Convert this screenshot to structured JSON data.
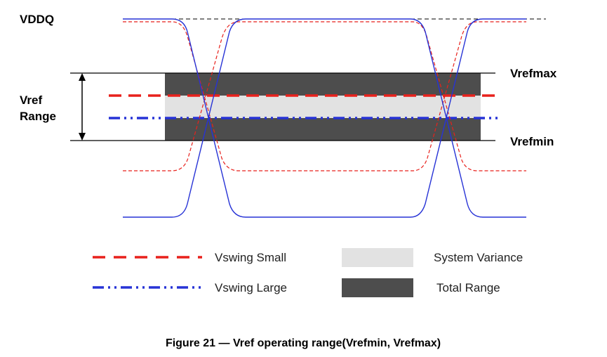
{
  "labels": {
    "vddq": "VDDQ",
    "vref_range_line1": "Vref",
    "vref_range_line2": "Range",
    "vrefmax": "Vrefmax",
    "vrefmin": "Vrefmin"
  },
  "legend": {
    "vswing_small": "Vswing Small",
    "vswing_large": "Vswing Large",
    "system_variance": "System Variance",
    "total_range": "Total Range"
  },
  "caption": "Figure 21 — Vref operating range(Vrefmin, Vrefmax)",
  "colors": {
    "vswing_small": "#e8211c",
    "vswing_large": "#2733d6",
    "total_range": "#4d4d4d",
    "system_variance": "#e2e2e2",
    "black": "#000000"
  }
}
